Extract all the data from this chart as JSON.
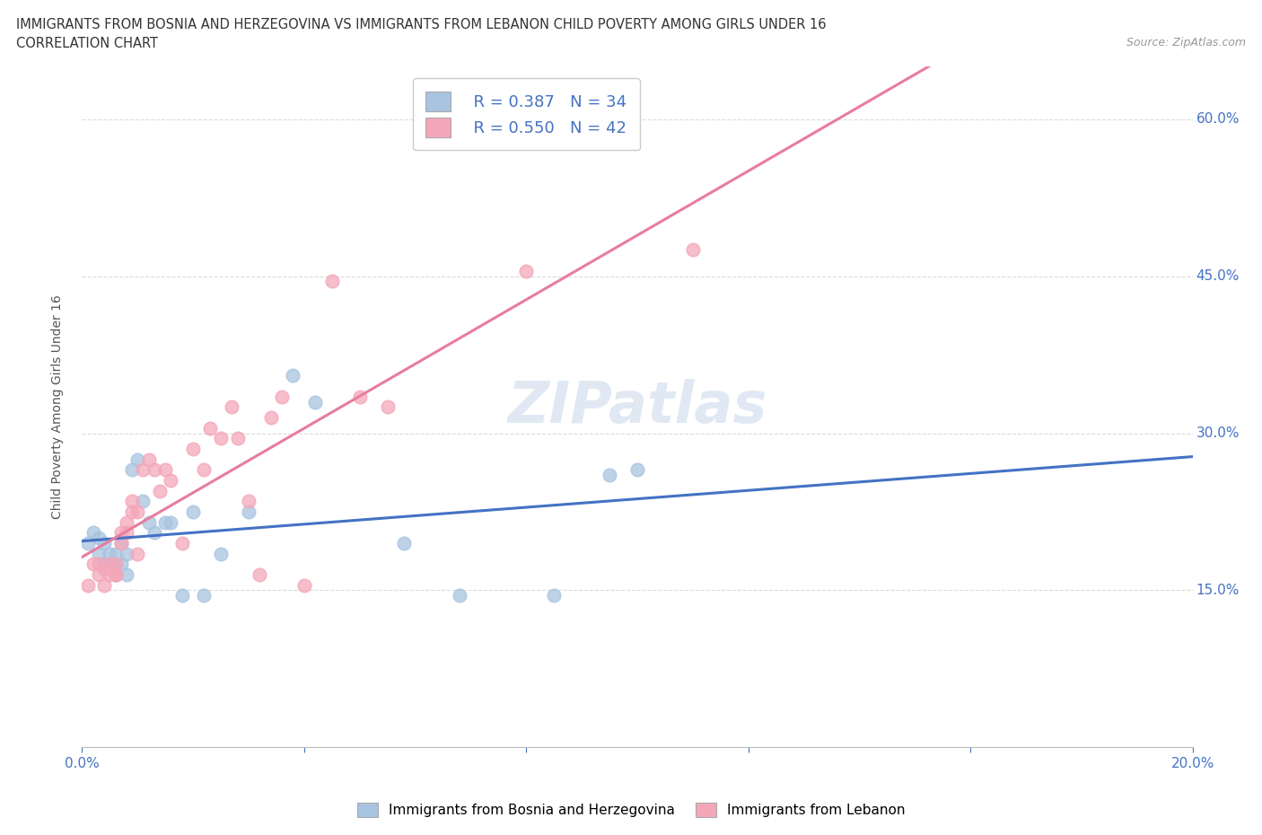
{
  "title_line1": "IMMIGRANTS FROM BOSNIA AND HERZEGOVINA VS IMMIGRANTS FROM LEBANON CHILD POVERTY AMONG GIRLS UNDER 16",
  "title_line2": "CORRELATION CHART",
  "source_text": "Source: ZipAtlas.com",
  "ylabel": "Child Poverty Among Girls Under 16",
  "xlim": [
    0.0,
    0.2
  ],
  "ylim": [
    0.0,
    0.65
  ],
  "x_ticks": [
    0.0,
    0.04,
    0.08,
    0.12,
    0.16,
    0.2
  ],
  "x_tick_labels": [
    "0.0%",
    "",
    "",
    "",
    "",
    "20.0%"
  ],
  "y_ticks": [
    0.0,
    0.15,
    0.3,
    0.45,
    0.6
  ],
  "y_tick_labels": [
    "",
    "15.0%",
    "30.0%",
    "45.0%",
    "60.0%"
  ],
  "bosnia_color": "#a8c4e0",
  "lebanon_color": "#f4a7b9",
  "bosnia_line_color": "#4472c4",
  "lebanon_line_color": "#e87ca0",
  "legend_r_bosnia": "R = 0.387",
  "legend_n_bosnia": "N = 34",
  "legend_r_lebanon": "R = 0.550",
  "legend_n_lebanon": "N = 42",
  "watermark": "ZIPatlas",
  "bosnia_x": [
    0.001,
    0.002,
    0.003,
    0.003,
    0.004,
    0.004,
    0.005,
    0.005,
    0.006,
    0.006,
    0.006,
    0.007,
    0.007,
    0.008,
    0.008,
    0.009,
    0.01,
    0.011,
    0.012,
    0.013,
    0.015,
    0.016,
    0.018,
    0.02,
    0.022,
    0.025,
    0.03,
    0.038,
    0.042,
    0.058,
    0.068,
    0.085,
    0.095,
    0.1
  ],
  "bosnia_y": [
    0.195,
    0.205,
    0.2,
    0.185,
    0.175,
    0.195,
    0.185,
    0.175,
    0.185,
    0.175,
    0.165,
    0.195,
    0.175,
    0.185,
    0.165,
    0.265,
    0.275,
    0.235,
    0.215,
    0.205,
    0.215,
    0.215,
    0.145,
    0.225,
    0.145,
    0.185,
    0.225,
    0.355,
    0.33,
    0.195,
    0.145,
    0.145,
    0.26,
    0.265
  ],
  "lebanon_x": [
    0.001,
    0.002,
    0.003,
    0.003,
    0.004,
    0.004,
    0.005,
    0.005,
    0.006,
    0.006,
    0.006,
    0.007,
    0.007,
    0.008,
    0.008,
    0.009,
    0.009,
    0.01,
    0.01,
    0.011,
    0.012,
    0.013,
    0.014,
    0.015,
    0.016,
    0.018,
    0.02,
    0.022,
    0.023,
    0.025,
    0.027,
    0.028,
    0.03,
    0.032,
    0.034,
    0.036,
    0.04,
    0.045,
    0.05,
    0.055,
    0.08,
    0.11
  ],
  "lebanon_y": [
    0.155,
    0.175,
    0.165,
    0.175,
    0.155,
    0.17,
    0.165,
    0.175,
    0.175,
    0.165,
    0.165,
    0.195,
    0.205,
    0.205,
    0.215,
    0.225,
    0.235,
    0.185,
    0.225,
    0.265,
    0.275,
    0.265,
    0.245,
    0.265,
    0.255,
    0.195,
    0.285,
    0.265,
    0.305,
    0.295,
    0.325,
    0.295,
    0.235,
    0.165,
    0.315,
    0.335,
    0.155,
    0.445,
    0.335,
    0.325,
    0.455,
    0.475
  ]
}
